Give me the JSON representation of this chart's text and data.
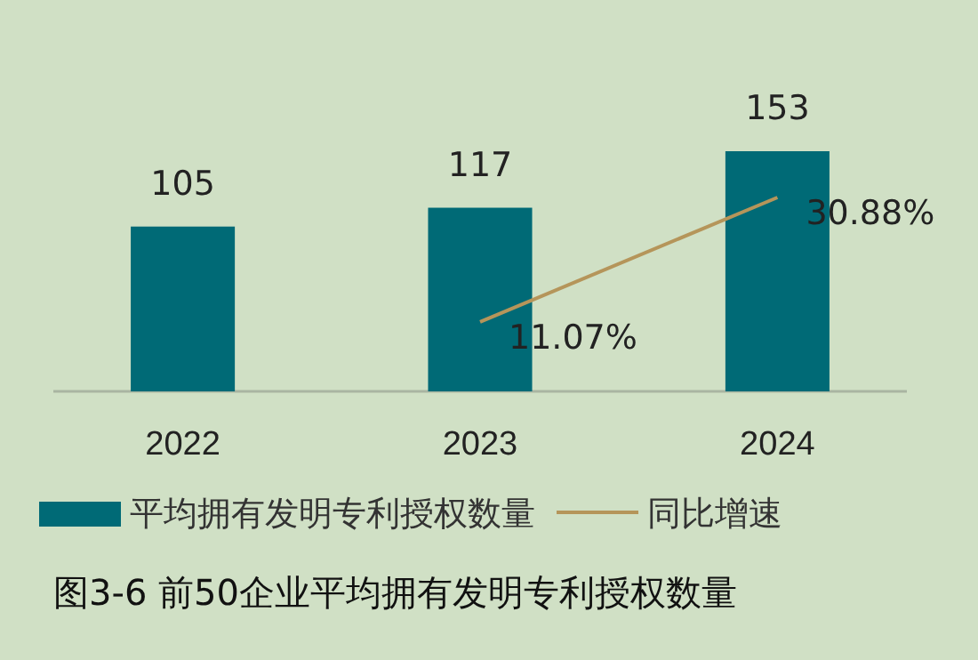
{
  "chart_data": {
    "type": "bar",
    "title": "图3-6 前50企业平均拥有发明专利授权数量",
    "categories": [
      "2022",
      "2023",
      "2024"
    ],
    "series": [
      {
        "name": "平均拥有发明专利授权数量",
        "color": "#006a76",
        "values": [
          105,
          117,
          153
        ],
        "value_labels": [
          "105",
          "117",
          "153"
        ]
      },
      {
        "name": "同比增速",
        "type": "line",
        "axis": "y2",
        "color": "#b5955a",
        "values": [
          null,
          11.07,
          30.88
        ],
        "value_labels": [
          null,
          "11.07%",
          "30.88%"
        ]
      }
    ],
    "tick_labels": "x",
    "legend": "bottom"
  }
}
